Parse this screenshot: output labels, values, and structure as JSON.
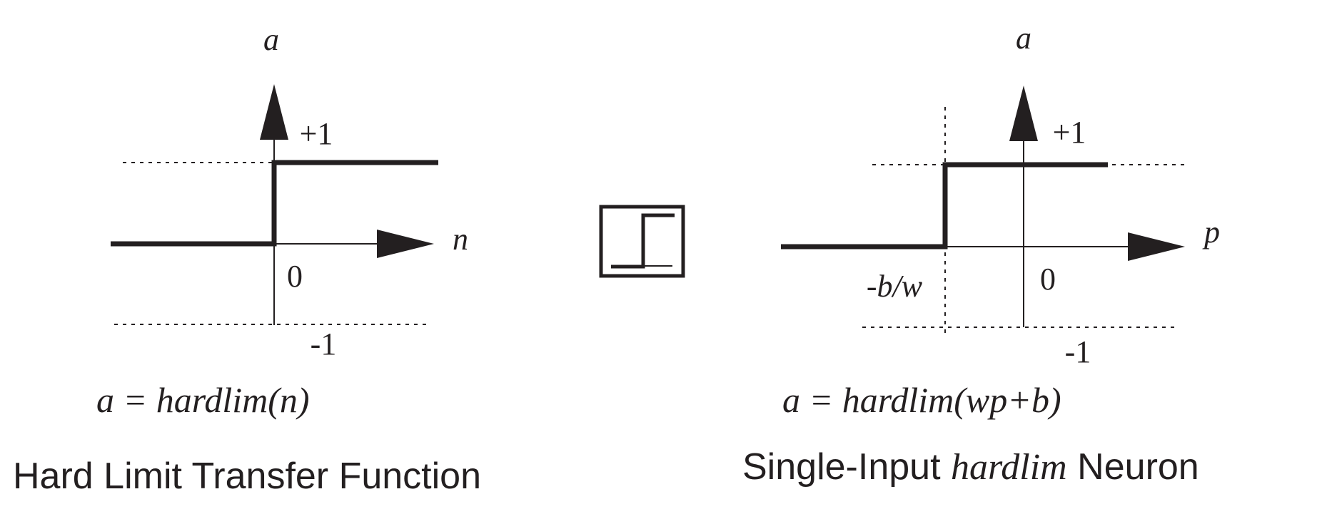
{
  "left_panel": {
    "y_axis_label": "a",
    "x_axis_label": "n",
    "plus_one_label": "+1",
    "zero_label": "0",
    "minus_one_label": "-1",
    "equation": "a = hardlim(n)",
    "caption": "Hard Limit Transfer Function"
  },
  "right_panel": {
    "y_axis_label": "a",
    "x_axis_label": "p",
    "plus_one_label": "+1",
    "zero_label": "0",
    "minus_one_label": "-1",
    "threshold_label": "-b/w",
    "equation": "a = hardlim(wp+b)",
    "caption_prefix": "Single-Input ",
    "caption_italic": "hardlim",
    "caption_suffix": " Neuron"
  },
  "colors": {
    "ink": "#231f20"
  }
}
